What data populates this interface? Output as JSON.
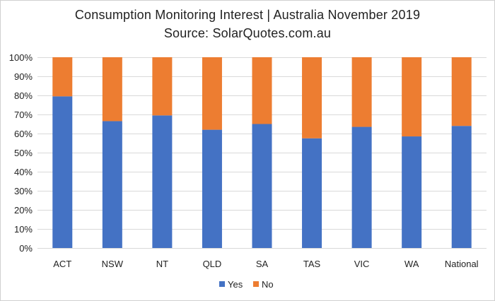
{
  "chart_data": {
    "type": "bar",
    "stacked": true,
    "title": "Consumption Monitoring Interest | Australia November 2019",
    "subtitle": "Source: SolarQuotes.com.au",
    "categories": [
      "ACT",
      "NSW",
      "NT",
      "QLD",
      "SA",
      "TAS",
      "VIC",
      "WA",
      "National"
    ],
    "series": [
      {
        "name": "Yes",
        "color": "#4472C4",
        "values": [
          79.5,
          66.5,
          69.5,
          62.0,
          65.0,
          57.5,
          63.5,
          58.5,
          64.0
        ]
      },
      {
        "name": "No",
        "color": "#ED7D31",
        "values": [
          20.5,
          33.5,
          30.5,
          38.0,
          35.0,
          42.5,
          36.5,
          41.5,
          36.0
        ]
      }
    ],
    "ylim": [
      0,
      100
    ],
    "yticks": [
      "0%",
      "10%",
      "20%",
      "30%",
      "40%",
      "50%",
      "60%",
      "70%",
      "80%",
      "90%",
      "100%"
    ],
    "grid": true,
    "legend_position": "bottom"
  }
}
